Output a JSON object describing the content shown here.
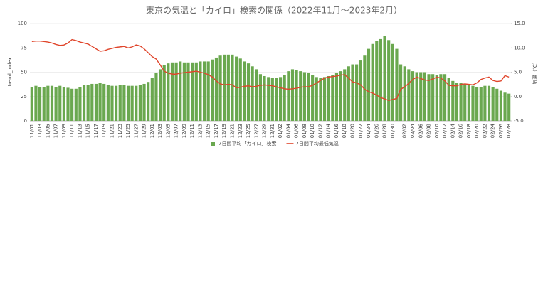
{
  "chart_data": {
    "type": "combo",
    "title": "東京の気温と「カイロ」検索の関係（2022年11月〜2023年2月）",
    "ylabel": "trend_index",
    "y2label": "気温（℃）",
    "categories": [
      "11/01",
      null,
      "11/03",
      null,
      "11/05",
      null,
      "11/07",
      null,
      "11/09",
      null,
      "11/11",
      null,
      "11/13",
      null,
      "11/15",
      null,
      "11/17",
      null,
      "11/19",
      null,
      "11/21",
      null,
      "11/23",
      null,
      "11/25",
      null,
      "11/27",
      null,
      "11/29",
      null,
      "12/01",
      null,
      "12/03",
      null,
      "12/05",
      null,
      "12/07",
      null,
      "12/09",
      null,
      "12/11",
      null,
      "12/13",
      null,
      "12/15",
      null,
      "12/17",
      null,
      "12/19",
      null,
      "12/21",
      null,
      "12/23",
      null,
      "12/25",
      null,
      "12/27",
      null,
      "12/29",
      null,
      "12/31",
      null,
      "01/02",
      null,
      "01/04",
      null,
      "01/06",
      null,
      "01/08",
      null,
      "01/10",
      null,
      "01/12",
      null,
      "01/14",
      null,
      "01/16",
      null,
      "01/18",
      null,
      "01/20",
      null,
      "01/22",
      null,
      "01/24",
      null,
      "01/26",
      null,
      "01/28",
      null,
      "01/30",
      null,
      null,
      "02/02",
      null,
      "02/04",
      null,
      "02/06",
      null,
      "02/08",
      null,
      "02/10",
      null,
      "02/12",
      null,
      "02/14",
      null,
      "02/16",
      null,
      "02/18",
      null,
      "02/20",
      null,
      "02/22",
      null,
      "02/24",
      null,
      "02/26",
      null,
      "02/28"
    ],
    "series": [
      {
        "name": "7日間平均「カイロ」検索",
        "type": "bar",
        "axis": "y",
        "color": "#6aa84f",
        "values": [
          35,
          36,
          35,
          35,
          36,
          36,
          35,
          36,
          35,
          34,
          33,
          33,
          35,
          37,
          37,
          38,
          38,
          39,
          38,
          37,
          36,
          36,
          37,
          37,
          36,
          36,
          36,
          37,
          38,
          40,
          44,
          49,
          53,
          57,
          59,
          60,
          60,
          61,
          60,
          60,
          60,
          60,
          61,
          61,
          61,
          63,
          65,
          67,
          68,
          68,
          68,
          66,
          64,
          61,
          59,
          56,
          53,
          48,
          46,
          45,
          44,
          44,
          45,
          47,
          51,
          53,
          52,
          51,
          50,
          49,
          47,
          45,
          44,
          45,
          46,
          47,
          49,
          51,
          53,
          56,
          58,
          58,
          62,
          67,
          74,
          79,
          82,
          84,
          87,
          83,
          79,
          74,
          58,
          56,
          53,
          51,
          50,
          50,
          50,
          48,
          48,
          47,
          48,
          48,
          44,
          41,
          39,
          39,
          38,
          37,
          36,
          35,
          35,
          36,
          36,
          35,
          33,
          31,
          29,
          28
        ]
      },
      {
        "name": "7日間平均最低気温",
        "type": "line",
        "axis": "y2",
        "color": "#e0452b",
        "values": [
          11.3,
          11.4,
          11.4,
          11.3,
          11.2,
          11.0,
          10.7,
          10.5,
          10.6,
          11.0,
          11.7,
          11.5,
          11.2,
          11.0,
          10.8,
          10.3,
          9.8,
          9.3,
          9.4,
          9.7,
          9.9,
          10.1,
          10.2,
          10.3,
          10.0,
          10.2,
          10.6,
          10.4,
          9.8,
          9.0,
          8.2,
          7.7,
          6.5,
          5.2,
          4.8,
          4.6,
          4.6,
          4.8,
          4.9,
          5.0,
          5.1,
          5.2,
          5.0,
          4.8,
          4.5,
          4.0,
          3.2,
          2.6,
          2.4,
          2.5,
          2.4,
          1.8,
          1.9,
          2.1,
          2.2,
          2.0,
          2.1,
          2.3,
          2.4,
          2.3,
          2.2,
          2.0,
          1.8,
          1.6,
          1.5,
          1.6,
          1.7,
          1.9,
          2.0,
          2.0,
          2.3,
          2.8,
          3.3,
          3.8,
          4.0,
          4.1,
          4.2,
          4.4,
          4.5,
          3.8,
          3.0,
          2.8,
          2.4,
          1.5,
          1.0,
          0.7,
          0.3,
          -0.2,
          -0.5,
          -0.8,
          -0.6,
          -0.4,
          1.5,
          2.0,
          2.7,
          3.5,
          4.0,
          3.7,
          3.4,
          3.3,
          3.6,
          4.0,
          3.8,
          3.2,
          2.3,
          2.2,
          2.2,
          2.5,
          2.6,
          2.5,
          2.4,
          2.8,
          3.5,
          3.8,
          4.0,
          3.3,
          3.1,
          3.2,
          4.3,
          4.0
        ]
      }
    ],
    "ylim": [
      0,
      100
    ],
    "yticks": [
      0,
      25,
      50,
      75,
      100
    ],
    "y2lim": [
      -5,
      15
    ],
    "y2ticks": [
      {
        "value": 15,
        "label": "15.0"
      },
      {
        "value": 10,
        "label": "10.0"
      },
      {
        "value": 5,
        "label": "5.0"
      },
      {
        "value": 0,
        "label": "0.0"
      },
      {
        "value": -5,
        "label": "-5.0"
      }
    ],
    "grid": true,
    "legend": "bottom"
  }
}
